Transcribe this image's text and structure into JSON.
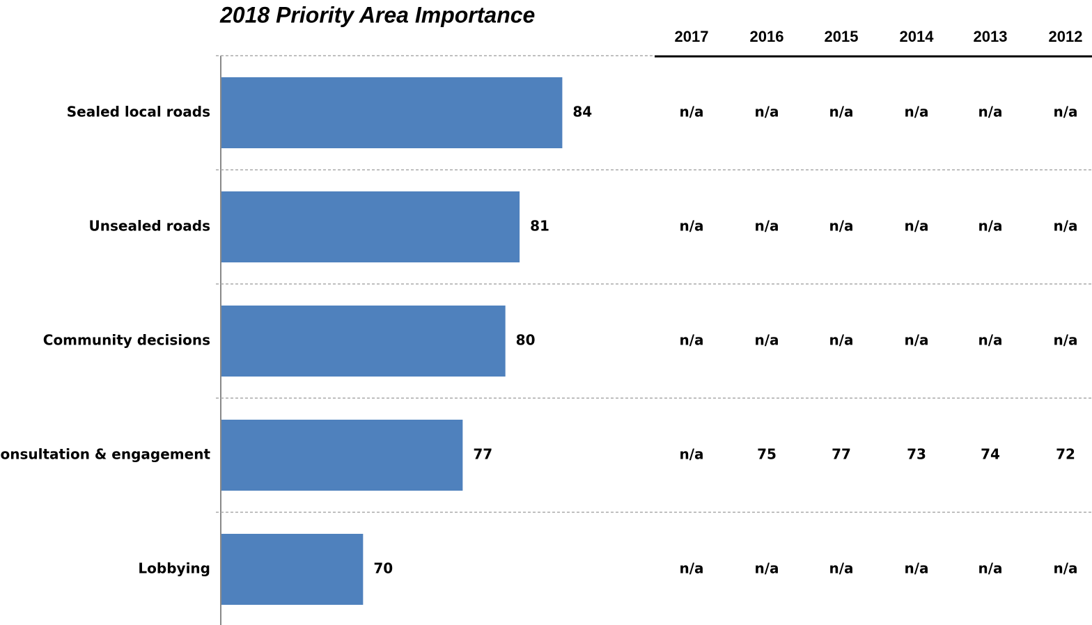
{
  "chart_data": {
    "type": "bar",
    "orientation": "horizontal",
    "title": "2018 Priority Area Importance",
    "categories": [
      "Sealed local roads",
      "Unsealed roads",
      "Community decisions",
      "Consultation & engagement",
      "Lobbying"
    ],
    "values": [
      84,
      81,
      80,
      77,
      70
    ],
    "color": "#4f81bd",
    "xlim": [
      60,
      90
    ]
  },
  "table": {
    "columns": [
      "2017",
      "2016",
      "2015",
      "2014",
      "2013",
      "2012"
    ],
    "rows": [
      [
        "n/a",
        "n/a",
        "n/a",
        "n/a",
        "n/a",
        "n/a"
      ],
      [
        "n/a",
        "n/a",
        "n/a",
        "n/a",
        "n/a",
        "n/a"
      ],
      [
        "n/a",
        "n/a",
        "n/a",
        "n/a",
        "n/a",
        "n/a"
      ],
      [
        "n/a",
        75,
        77,
        73,
        74,
        72
      ],
      [
        "n/a",
        "n/a",
        "n/a",
        "n/a",
        "n/a",
        "n/a"
      ]
    ]
  }
}
